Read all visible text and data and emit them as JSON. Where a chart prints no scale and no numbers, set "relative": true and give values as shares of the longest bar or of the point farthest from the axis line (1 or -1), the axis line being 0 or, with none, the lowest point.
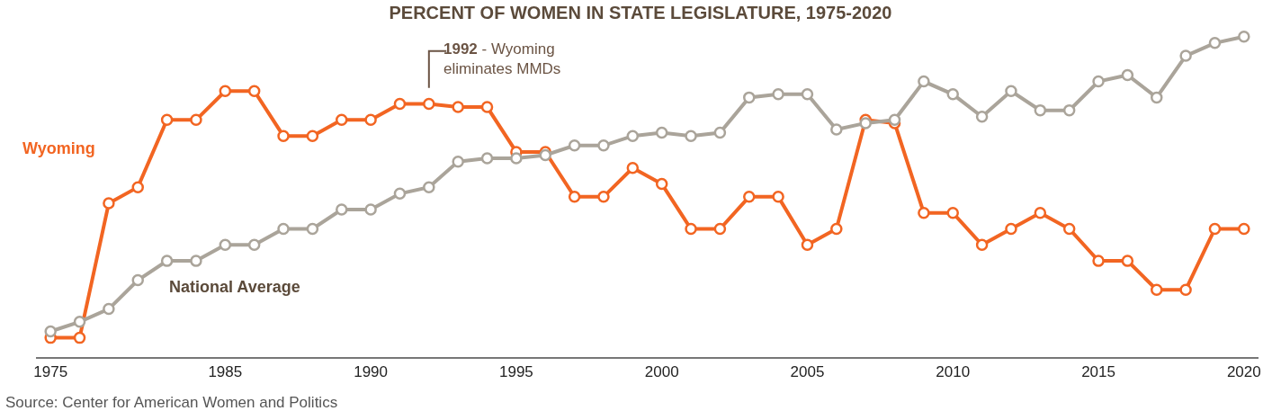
{
  "chart_data": {
    "type": "line",
    "title": "PERCENT OF WOMEN IN STATE LEGISLATURE, 1975-2020",
    "relative": true,
    "marker": "circle",
    "line_style": "solid",
    "tick_labels": "x",
    "categories": [
      "1975",
      null,
      null,
      null,
      null,
      null,
      "1985",
      null,
      null,
      null,
      null,
      "1990",
      null,
      null,
      null,
      null,
      "1995",
      null,
      null,
      null,
      null,
      "2000",
      null,
      null,
      null,
      null,
      "2005",
      null,
      null,
      null,
      null,
      "2010",
      null,
      null,
      null,
      null,
      "2015",
      null,
      null,
      null,
      null,
      "2020"
    ],
    "series": [
      {
        "name": "Wyoming",
        "color": "#f26522",
        "values": [
          0.06,
          0.06,
          0.48,
          0.53,
          0.74,
          0.74,
          0.83,
          0.83,
          0.69,
          0.69,
          0.74,
          0.74,
          0.79,
          0.79,
          0.78,
          0.78,
          0.64,
          0.64,
          0.5,
          0.5,
          0.59,
          0.54,
          0.4,
          0.4,
          0.5,
          0.5,
          0.35,
          0.4,
          0.74,
          0.73,
          0.45,
          0.45,
          0.35,
          0.4,
          0.45,
          0.4,
          0.3,
          0.3,
          0.21,
          0.21,
          0.4,
          0.4
        ]
      },
      {
        "name": "National Average",
        "color": "#aaa49a",
        "values": [
          0.08,
          0.11,
          0.15,
          0.24,
          0.3,
          0.3,
          0.35,
          0.35,
          0.4,
          0.4,
          0.46,
          0.46,
          0.51,
          0.53,
          0.61,
          0.62,
          0.62,
          0.63,
          0.66,
          0.66,
          0.69,
          0.7,
          0.69,
          0.7,
          0.81,
          0.82,
          0.82,
          0.71,
          0.73,
          0.74,
          0.86,
          0.82,
          0.75,
          0.83,
          0.77,
          0.77,
          0.86,
          0.88,
          0.81,
          0.94,
          0.98,
          1
        ]
      }
    ],
    "annotations": [
      "1992 - Wyoming eliminates MMDs",
      "Source: Center for American Women and Politics"
    ]
  }
}
